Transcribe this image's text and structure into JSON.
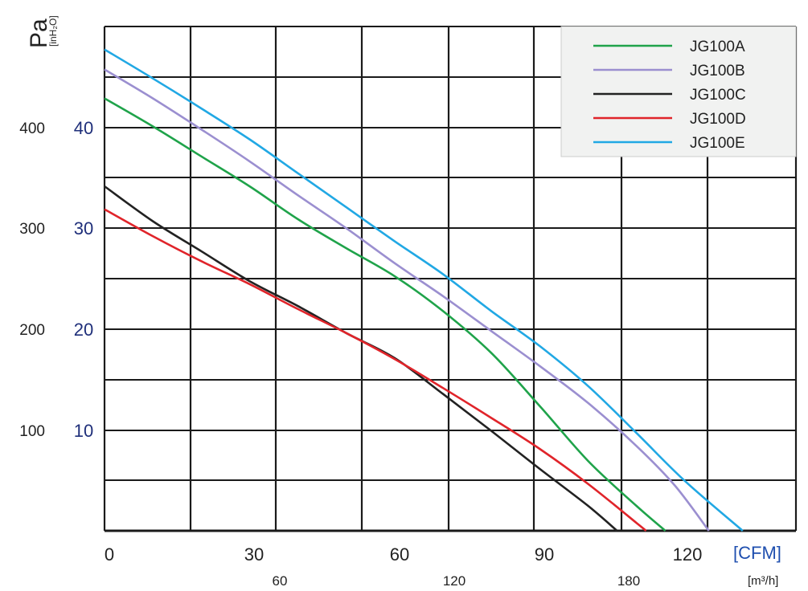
{
  "chart_data": {
    "type": "line",
    "y_left_label": "Pa",
    "y_right_unit": "[inH₂O]",
    "x_unit_primary": "[CFM]",
    "x_unit_secondary": "[m³/h]",
    "pa_ticks": [
      "400",
      "300",
      "200",
      "100"
    ],
    "inh2o_ticks": [
      "40",
      "30",
      "20",
      "10"
    ],
    "cfm_ticks": [
      "0",
      "30",
      "60",
      "90",
      "120"
    ],
    "m3h_ticks": [
      "60",
      "120",
      "180"
    ],
    "xlim": [
      0,
      143
    ],
    "ylim": [
      0,
      505
    ],
    "grid": true,
    "legend_position": "top-right",
    "series": [
      {
        "name": "JG100A",
        "color": "#1fa34a",
        "points": [
          [
            0,
            433
          ],
          [
            10,
            405
          ],
          [
            20,
            375
          ],
          [
            30,
            345
          ],
          [
            40,
            312
          ],
          [
            50,
            283
          ],
          [
            60,
            255
          ],
          [
            70,
            220
          ],
          [
            80,
            178
          ],
          [
            90,
            125
          ],
          [
            100,
            70
          ],
          [
            110,
            25
          ],
          [
            116,
            0
          ]
        ]
      },
      {
        "name": "JG100B",
        "color": "#9b8fd0",
        "points": [
          [
            0,
            462
          ],
          [
            10,
            433
          ],
          [
            20,
            402
          ],
          [
            30,
            370
          ],
          [
            40,
            336
          ],
          [
            50,
            303
          ],
          [
            60,
            268
          ],
          [
            70,
            235
          ],
          [
            80,
            200
          ],
          [
            90,
            165
          ],
          [
            100,
            128
          ],
          [
            110,
            85
          ],
          [
            118,
            45
          ],
          [
            125,
            0
          ]
        ]
      },
      {
        "name": "JG100C",
        "color": "#222222",
        "points": [
          [
            0,
            345
          ],
          [
            10,
            310
          ],
          [
            20,
            280
          ],
          [
            30,
            250
          ],
          [
            40,
            225
          ],
          [
            50,
            198
          ],
          [
            60,
            173
          ],
          [
            70,
            137
          ],
          [
            80,
            100
          ],
          [
            90,
            62
          ],
          [
            100,
            25
          ],
          [
            106,
            0
          ]
        ]
      },
      {
        "name": "JG100D",
        "color": "#e0242a",
        "points": [
          [
            0,
            322
          ],
          [
            10,
            295
          ],
          [
            20,
            270
          ],
          [
            30,
            247
          ],
          [
            40,
            222
          ],
          [
            50,
            198
          ],
          [
            60,
            172
          ],
          [
            70,
            143
          ],
          [
            80,
            113
          ],
          [
            90,
            82
          ],
          [
            100,
            47
          ],
          [
            110,
            8
          ],
          [
            112,
            0
          ]
        ]
      },
      {
        "name": "JG100E",
        "color": "#21a8e4",
        "points": [
          [
            0,
            482
          ],
          [
            10,
            453
          ],
          [
            20,
            423
          ],
          [
            30,
            392
          ],
          [
            40,
            358
          ],
          [
            50,
            324
          ],
          [
            60,
            290
          ],
          [
            70,
            257
          ],
          [
            80,
            220
          ],
          [
            90,
            185
          ],
          [
            100,
            145
          ],
          [
            110,
            98
          ],
          [
            120,
            50
          ],
          [
            132,
            0
          ]
        ]
      }
    ]
  }
}
